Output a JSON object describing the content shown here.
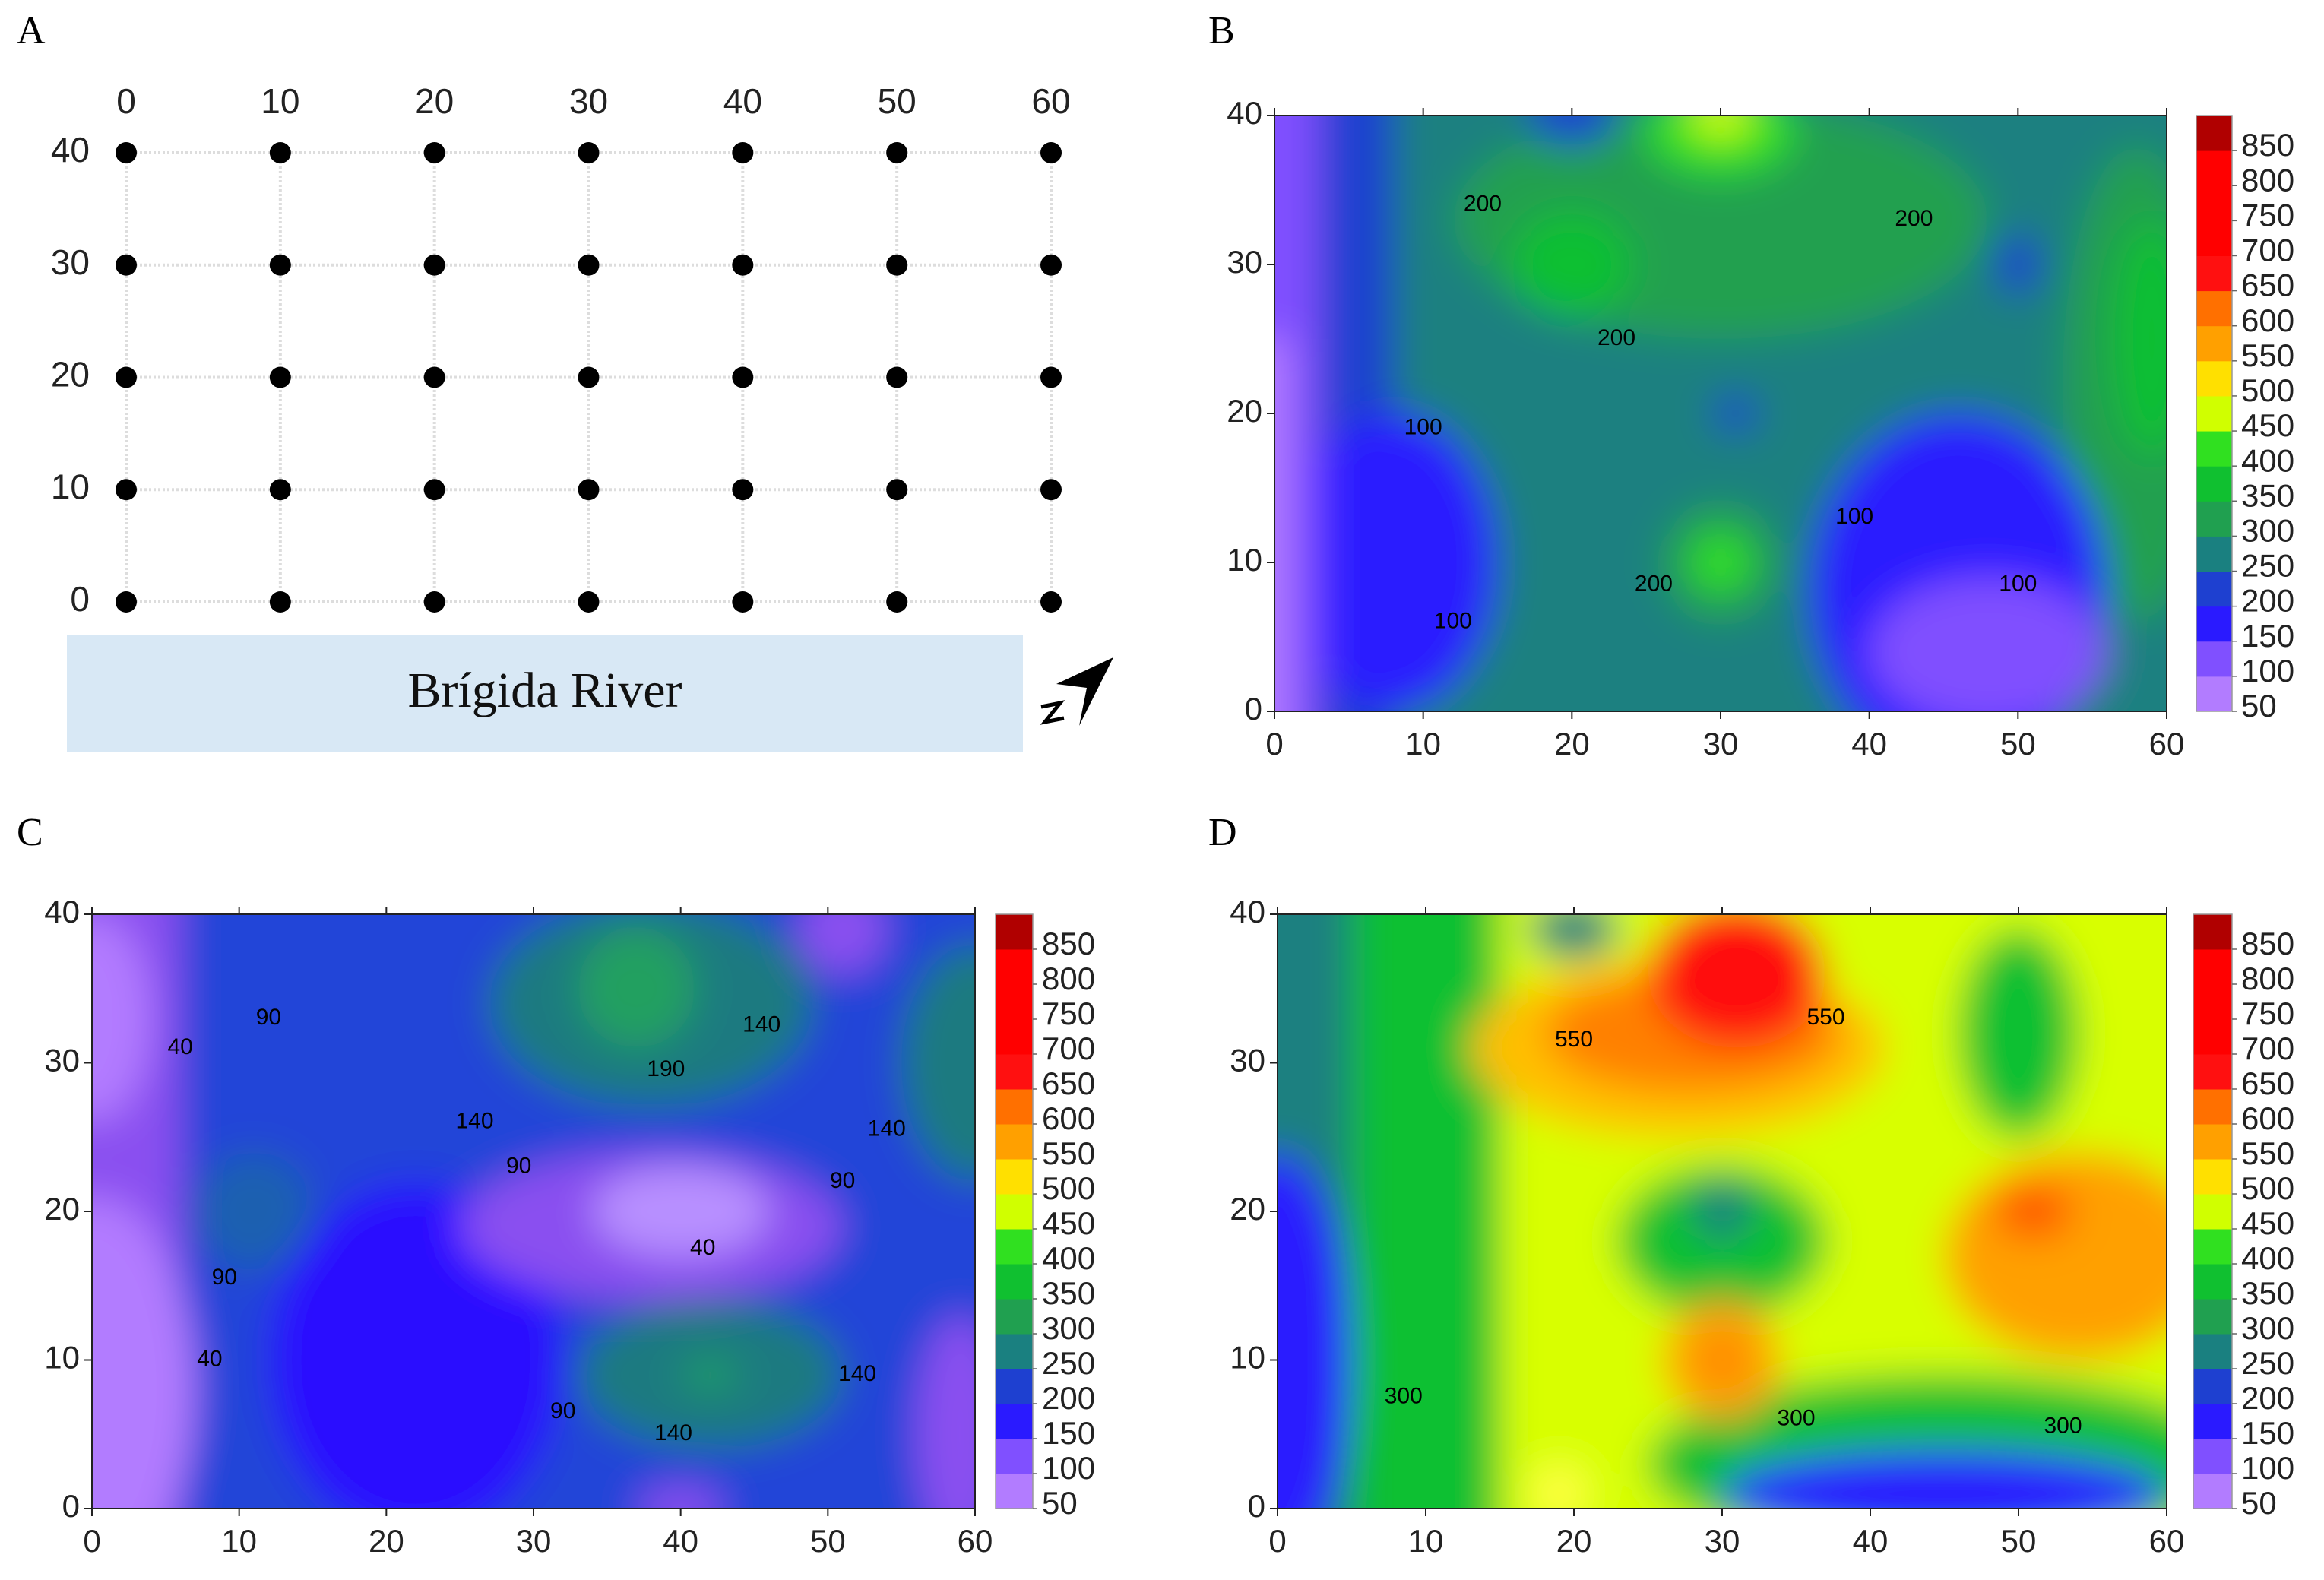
{
  "chart_data": [
    {
      "type": "scatter",
      "panel": "A",
      "annotation": "Brígida River",
      "x": [
        0,
        10,
        20,
        30,
        40,
        50,
        60,
        0,
        10,
        20,
        30,
        40,
        50,
        60,
        0,
        10,
        20,
        30,
        40,
        50,
        60,
        0,
        10,
        20,
        30,
        40,
        50,
        60,
        0,
        10,
        20,
        30,
        40,
        50,
        60
      ],
      "y": [
        40,
        40,
        40,
        40,
        40,
        40,
        40,
        30,
        30,
        30,
        30,
        30,
        30,
        30,
        20,
        20,
        20,
        20,
        20,
        20,
        20,
        10,
        10,
        10,
        10,
        10,
        10,
        10,
        0,
        0,
        0,
        0,
        0,
        0,
        0
      ],
      "xlim": [
        0,
        60
      ],
      "ylim": [
        0,
        40
      ],
      "xticks": [
        0,
        10,
        20,
        30,
        40,
        50,
        60
      ],
      "yticks": [
        0,
        10,
        20,
        30,
        40
      ],
      "color": "#000000"
    },
    {
      "type": "contour",
      "panel": "B",
      "xlim": [
        0,
        60
      ],
      "ylim": [
        0,
        40
      ],
      "xticks": [
        0,
        10,
        20,
        30,
        40,
        50,
        60
      ],
      "yticks": [
        0,
        10,
        20,
        30,
        40
      ],
      "colorbar": {
        "levels": [
          50,
          100,
          150,
          200,
          250,
          300,
          350,
          400,
          450,
          500,
          550,
          600,
          650,
          700,
          750,
          800,
          850
        ],
        "colors": [
          "#b27cff",
          "#8050ff",
          "#2a1aff",
          "#1e40d0",
          "#1a8080",
          "#20a050",
          "#10c030",
          "#30e020",
          "#d0ff00",
          "#ffe000",
          "#ffa000",
          "#ff7000",
          "#ff1010",
          "#ff0000",
          "#ff0000",
          "#ff0000",
          "#b00000"
        ]
      },
      "contour_labels": [
        {
          "value": 200,
          "x": 14,
          "y": 34
        },
        {
          "value": 200,
          "x": 43,
          "y": 33
        },
        {
          "value": 200,
          "x": 23,
          "y": 25
        },
        {
          "value": 200,
          "x": 25.5,
          "y": 8.5
        },
        {
          "value": 100,
          "x": 10,
          "y": 19
        },
        {
          "value": 100,
          "x": 12,
          "y": 6
        },
        {
          "value": 100,
          "x": 39,
          "y": 13
        },
        {
          "value": 100,
          "x": 50,
          "y": 8.5
        }
      ]
    },
    {
      "type": "contour",
      "panel": "C",
      "xlim": [
        0,
        60
      ],
      "ylim": [
        0,
        40
      ],
      "xticks": [
        0,
        10,
        20,
        30,
        40,
        50,
        60
      ],
      "yticks": [
        0,
        10,
        20,
        30,
        40
      ],
      "colorbar": {
        "levels": [
          50,
          100,
          150,
          200,
          250,
          300,
          350,
          400,
          450,
          500,
          550,
          600,
          650,
          700,
          750,
          800,
          850
        ],
        "colors": [
          "#b27cff",
          "#8050ff",
          "#2a1aff",
          "#1e40d0",
          "#1a8080",
          "#20a050",
          "#10c030",
          "#30e020",
          "#d0ff00",
          "#ffe000",
          "#ffa000",
          "#ff7000",
          "#ff1010",
          "#ff0000",
          "#ff0000",
          "#ff0000",
          "#b00000"
        ]
      },
      "contour_labels": [
        {
          "value": 40,
          "x": 6,
          "y": 31
        },
        {
          "value": 40,
          "x": 8,
          "y": 10
        },
        {
          "value": 40,
          "x": 41.5,
          "y": 17.5
        },
        {
          "value": 90,
          "x": 12,
          "y": 33
        },
        {
          "value": 90,
          "x": 29,
          "y": 23
        },
        {
          "value": 90,
          "x": 9,
          "y": 15.5
        },
        {
          "value": 90,
          "x": 32,
          "y": 6.5
        },
        {
          "value": 90,
          "x": 51,
          "y": 22
        },
        {
          "value": 140,
          "x": 26,
          "y": 26
        },
        {
          "value": 140,
          "x": 45.5,
          "y": 32.5
        },
        {
          "value": 140,
          "x": 54,
          "y": 25.5
        },
        {
          "value": 140,
          "x": 52,
          "y": 9
        },
        {
          "value": 140,
          "x": 39.5,
          "y": 5
        },
        {
          "value": 190,
          "x": 39,
          "y": 29.5
        }
      ]
    },
    {
      "type": "contour",
      "panel": "D",
      "xlim": [
        0,
        60
      ],
      "ylim": [
        0,
        40
      ],
      "xticks": [
        0,
        10,
        20,
        30,
        40,
        50,
        60
      ],
      "yticks": [
        0,
        10,
        20,
        30,
        40
      ],
      "colorbar": {
        "levels": [
          50,
          100,
          150,
          200,
          250,
          300,
          350,
          400,
          450,
          500,
          550,
          600,
          650,
          700,
          750,
          800,
          850
        ],
        "colors": [
          "#b27cff",
          "#8050ff",
          "#2a1aff",
          "#1e40d0",
          "#1a8080",
          "#20a050",
          "#10c030",
          "#30e020",
          "#d0ff00",
          "#ffe000",
          "#ffa000",
          "#ff7000",
          "#ff1010",
          "#ff0000",
          "#ff0000",
          "#ff0000",
          "#b00000"
        ]
      },
      "contour_labels": [
        {
          "value": 550,
          "x": 20,
          "y": 31.5
        },
        {
          "value": 550,
          "x": 37,
          "y": 33
        },
        {
          "value": 300,
          "x": 8.5,
          "y": 7.5
        },
        {
          "value": 300,
          "x": 35,
          "y": 6
        },
        {
          "value": 300,
          "x": 53,
          "y": 5.5
        }
      ]
    }
  ]
}
